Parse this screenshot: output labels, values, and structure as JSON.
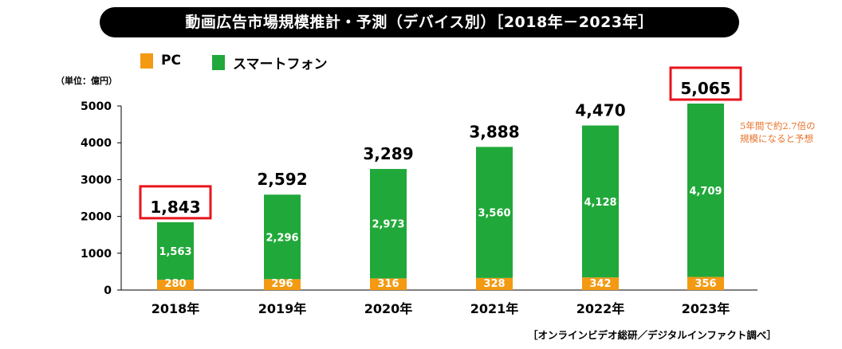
{
  "title": "動画広告市場規模推計・予測（デバイス別）［2018年－2023年］",
  "unit_label": "（単位：億円）",
  "annotation": [
    "5年間で約2.7倍の",
    "規模になると予想"
  ],
  "source": "［オンラインビデオ総研／デジタルインファクト調べ］",
  "colors": {
    "pc": "#f39a12",
    "smartphone": "#21a83a",
    "highlight": "#e8141c",
    "annotation": "#e8732a"
  },
  "chart_data": {
    "type": "bar",
    "stacked": true,
    "categories": [
      "2018年",
      "2019年",
      "2020年",
      "2021年",
      "2022年",
      "2023年"
    ],
    "series": [
      {
        "name": "PC",
        "values": [
          280,
          296,
          316,
          328,
          342,
          356
        ]
      },
      {
        "name": "スマートフォン",
        "values": [
          1563,
          2296,
          2973,
          3560,
          4128,
          4709
        ]
      }
    ],
    "totals": [
      "1,843",
      "2,592",
      "3,289",
      "3,888",
      "4,470",
      "5,065"
    ],
    "highlighted_totals": [
      "2018年",
      "2023年"
    ],
    "yticks": [
      0,
      1000,
      2000,
      3000,
      4000,
      5000
    ],
    "ylim": [
      0,
      5000
    ],
    "legend_position": "top-left",
    "grid": false
  }
}
